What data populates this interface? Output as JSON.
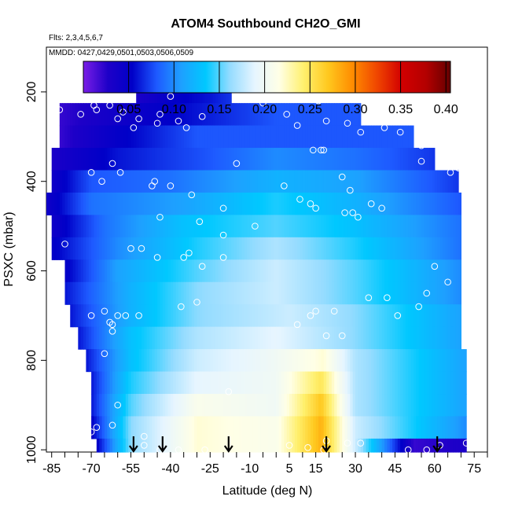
{
  "chart_data": {
    "type": "heatmap",
    "title": "ATOM4 Southbound CH2O_GMI",
    "flights_note": "Flts: 2,3,4,5,6,7",
    "dates_note": "MMDD: 0427,0429,0501,0503,0506,0509",
    "xlabel": "Latitude (deg N)",
    "ylabel": "PSXC (mbar)",
    "xlim": [
      -87,
      80
    ],
    "ylim": [
      1005,
      100
    ],
    "y_reversed": true,
    "x_tick_labels": [
      "-85",
      "-70",
      "-55",
      "-40",
      "-25",
      "-10",
      "5",
      "15",
      "30",
      "45",
      "60",
      "75"
    ],
    "x_tick_values": [
      -85,
      -70,
      -55,
      -40,
      -25,
      -10,
      5,
      15,
      30,
      45,
      60,
      75
    ],
    "x_minor_step": 5,
    "y_tick_labels": [
      "200",
      "400",
      "600",
      "800",
      "1000"
    ],
    "y_tick_values": [
      200,
      400,
      600,
      800,
      1000
    ],
    "colorbar": {
      "range": [
        0.0,
        0.405
      ],
      "tick_labels": [
        "0.05",
        "0.10",
        "0.15",
        "0.20",
        "0.25",
        "0.30",
        "0.35",
        "0.40"
      ],
      "tick_values": [
        0.05,
        0.1,
        0.15,
        0.2,
        0.25,
        0.3,
        0.35,
        0.4
      ],
      "colors": [
        "#7a1ee6",
        "#1e00c8",
        "#0000c8",
        "#1e5aff",
        "#1ea0ff",
        "#00c8ff",
        "#96dcff",
        "#e6f5ff",
        "#ffffe6",
        "#fff06e",
        "#ffc81e",
        "#ff8c00",
        "#f04600",
        "#d20000",
        "#b40000",
        "#640000"
      ]
    },
    "arrow_latitudes": [
      -54,
      -43,
      -18,
      19,
      61
    ],
    "levels": [
      {
        "p": 200,
        "xmin": -53,
        "xmax": -17,
        "anchors": [
          [
            -53,
            0.03
          ],
          [
            -40,
            0.05
          ],
          [
            -25,
            0.06
          ],
          [
            -17,
            0.07
          ]
        ]
      },
      {
        "p": 250,
        "xmin": -82,
        "xmax": 32,
        "anchors": [
          [
            -82,
            0.02
          ],
          [
            -60,
            0.04
          ],
          [
            -30,
            0.06
          ],
          [
            0,
            0.08
          ],
          [
            32,
            0.08
          ]
        ]
      },
      {
        "p": 300,
        "xmin": -82,
        "xmax": 52,
        "anchors": [
          [
            -82,
            0.02
          ],
          [
            -60,
            0.05
          ],
          [
            -30,
            0.08
          ],
          [
            0,
            0.08
          ],
          [
            30,
            0.08
          ],
          [
            52,
            0.08
          ]
        ]
      },
      {
        "p": 350,
        "xmin": -85,
        "xmax": 60,
        "anchors": [
          [
            -85,
            0.03
          ],
          [
            -60,
            0.06
          ],
          [
            -25,
            0.08
          ],
          [
            0,
            0.1
          ],
          [
            30,
            0.09
          ],
          [
            60,
            0.07
          ]
        ]
      },
      {
        "p": 400,
        "xmin": -85,
        "xmax": 69,
        "anchors": [
          [
            -85,
            0.04
          ],
          [
            -70,
            0.08
          ],
          [
            -40,
            0.09
          ],
          [
            0,
            0.12
          ],
          [
            30,
            0.11
          ],
          [
            69,
            0.07
          ]
        ]
      },
      {
        "p": 450,
        "xmin": -87,
        "xmax": 70,
        "anchors": [
          [
            -87,
            0.04
          ],
          [
            -70,
            0.09
          ],
          [
            -35,
            0.11
          ],
          [
            0,
            0.14
          ],
          [
            30,
            0.12
          ],
          [
            70,
            0.08
          ]
        ]
      },
      {
        "p": 500,
        "xmin": -85,
        "xmax": 70,
        "anchors": [
          [
            -85,
            0.04
          ],
          [
            -65,
            0.09
          ],
          [
            -35,
            0.13
          ],
          [
            0,
            0.15
          ],
          [
            30,
            0.13
          ],
          [
            70,
            0.09
          ]
        ]
      },
      {
        "p": 550,
        "xmin": -85,
        "xmax": 70,
        "anchors": [
          [
            -85,
            0.05
          ],
          [
            -60,
            0.1
          ],
          [
            -30,
            0.14
          ],
          [
            0,
            0.17
          ],
          [
            30,
            0.14
          ],
          [
            70,
            0.09
          ]
        ]
      },
      {
        "p": 600,
        "xmin": -80,
        "xmax": 70,
        "anchors": [
          [
            -80,
            0.05
          ],
          [
            -60,
            0.11
          ],
          [
            -30,
            0.15
          ],
          [
            0,
            0.18
          ],
          [
            30,
            0.15
          ],
          [
            70,
            0.1
          ]
        ]
      },
      {
        "p": 650,
        "xmin": -80,
        "xmax": 70,
        "anchors": [
          [
            -80,
            0.06
          ],
          [
            -55,
            0.12
          ],
          [
            -30,
            0.16
          ],
          [
            0,
            0.18
          ],
          [
            30,
            0.15
          ],
          [
            70,
            0.1
          ]
        ]
      },
      {
        "p": 700,
        "xmin": -78,
        "xmax": 70,
        "anchors": [
          [
            -78,
            0.06
          ],
          [
            -55,
            0.12
          ],
          [
            -30,
            0.16
          ],
          [
            5,
            0.18
          ],
          [
            30,
            0.16
          ],
          [
            70,
            0.11
          ]
        ]
      },
      {
        "p": 750,
        "xmin": -75,
        "xmax": 70,
        "anchors": [
          [
            -75,
            0.06
          ],
          [
            -55,
            0.13
          ],
          [
            -30,
            0.17
          ],
          [
            0,
            0.19
          ],
          [
            30,
            0.16
          ],
          [
            70,
            0.11
          ]
        ]
      },
      {
        "p": 800,
        "xmin": -72,
        "xmax": 72,
        "anchors": [
          [
            -72,
            0.06
          ],
          [
            -55,
            0.13
          ],
          [
            -30,
            0.18
          ],
          [
            0,
            0.2
          ],
          [
            18,
            0.22
          ],
          [
            30,
            0.17
          ],
          [
            72,
            0.11
          ]
        ]
      },
      {
        "p": 850,
        "xmin": -70,
        "xmax": 72,
        "anchors": [
          [
            -70,
            0.06
          ],
          [
            -55,
            0.14
          ],
          [
            -30,
            0.19
          ],
          [
            0,
            0.2
          ],
          [
            17,
            0.25
          ],
          [
            30,
            0.17
          ],
          [
            72,
            0.11
          ]
        ]
      },
      {
        "p": 900,
        "xmin": -70,
        "xmax": 72,
        "anchors": [
          [
            -70,
            0.06
          ],
          [
            -55,
            0.15
          ],
          [
            -30,
            0.21
          ],
          [
            0,
            0.2
          ],
          [
            17,
            0.27
          ],
          [
            30,
            0.17
          ],
          [
            72,
            0.11
          ]
        ]
      },
      {
        "p": 950,
        "xmin": -70,
        "xmax": 72,
        "anchors": [
          [
            -70,
            0.05
          ],
          [
            -55,
            0.16
          ],
          [
            -30,
            0.22
          ],
          [
            0,
            0.21
          ],
          [
            17,
            0.28
          ],
          [
            30,
            0.18
          ],
          [
            72,
            0.1
          ]
        ]
      },
      {
        "p": 1000,
        "xmin": -68,
        "xmax": 72,
        "anchors": [
          [
            -68,
            0.05
          ],
          [
            -55,
            0.16
          ],
          [
            -30,
            0.22
          ],
          [
            0,
            0.21
          ],
          [
            17,
            0.28
          ],
          [
            30,
            0.18
          ],
          [
            52,
            0.02
          ],
          [
            72,
            0.03
          ]
        ]
      }
    ],
    "observations": [
      [
        -82,
        240
      ],
      [
        -74,
        250
      ],
      [
        -69,
        230
      ],
      [
        -68,
        240
      ],
      [
        -63,
        230
      ],
      [
        -58,
        245
      ],
      [
        -60,
        260
      ],
      [
        -52,
        260
      ],
      [
        -54,
        280
      ],
      [
        -40,
        210
      ],
      [
        -45,
        270
      ],
      [
        -44,
        250
      ],
      [
        -37,
        265
      ],
      [
        -34,
        280
      ],
      [
        -28,
        255
      ],
      [
        -12,
        210
      ],
      [
        -5,
        225
      ],
      [
        4,
        250
      ],
      [
        8,
        275
      ],
      [
        16,
        220
      ],
      [
        19,
        265
      ],
      [
        14,
        330
      ],
      [
        17,
        330
      ],
      [
        18,
        330
      ],
      [
        27,
        270
      ],
      [
        32,
        290
      ],
      [
        41,
        280
      ],
      [
        47,
        290
      ],
      [
        55,
        320
      ],
      [
        55,
        355
      ],
      [
        -70,
        380
      ],
      [
        -66,
        400
      ],
      [
        -62,
        360
      ],
      [
        -59,
        380
      ],
      [
        -47,
        410
      ],
      [
        -46,
        400
      ],
      [
        -40,
        410
      ],
      [
        -32,
        430
      ],
      [
        -20,
        460
      ],
      [
        -15,
        360
      ],
      [
        3,
        410
      ],
      [
        9,
        440
      ],
      [
        13,
        450
      ],
      [
        25,
        390
      ],
      [
        28,
        420
      ],
      [
        31,
        480
      ],
      [
        36,
        450
      ],
      [
        40,
        460
      ],
      [
        66,
        380
      ],
      [
        69,
        370
      ],
      [
        -44,
        480
      ],
      [
        -29,
        490
      ],
      [
        -20,
        520
      ],
      [
        -8,
        500
      ],
      [
        15,
        460
      ],
      [
        26,
        470
      ],
      [
        29,
        470
      ],
      [
        -80,
        540
      ],
      [
        -55,
        550
      ],
      [
        -51,
        550
      ],
      [
        -45,
        570
      ],
      [
        -35,
        570
      ],
      [
        -33,
        560
      ],
      [
        -28,
        590
      ],
      [
        -20,
        570
      ],
      [
        -57,
        700
      ],
      [
        -60,
        700
      ],
      [
        -62,
        720
      ],
      [
        -62,
        735
      ],
      [
        -63,
        715
      ],
      [
        -65,
        690
      ],
      [
        -70,
        700
      ],
      [
        -65,
        785
      ],
      [
        -52,
        700
      ],
      [
        -36,
        680
      ],
      [
        -30,
        670
      ],
      [
        15,
        690
      ],
      [
        22,
        690
      ],
      [
        35,
        660
      ],
      [
        42,
        660
      ],
      [
        54,
        680
      ],
      [
        60,
        590
      ],
      [
        65,
        625
      ],
      [
        8,
        720
      ],
      [
        13,
        700
      ],
      [
        19,
        745
      ],
      [
        25,
        745
      ],
      [
        46,
        700
      ],
      [
        57,
        650
      ],
      [
        -60,
        900
      ],
      [
        -70,
        960
      ],
      [
        -68,
        950
      ],
      [
        -62,
        945
      ],
      [
        -50,
        970
      ],
      [
        -50,
        990
      ],
      [
        -44,
        1000
      ],
      [
        -37,
        1000
      ],
      [
        -27,
        1000
      ],
      [
        5,
        990
      ],
      [
        12,
        995
      ],
      [
        18,
        1000
      ],
      [
        19,
        980
      ],
      [
        27,
        985
      ],
      [
        32,
        985
      ],
      [
        50,
        1000
      ],
      [
        57,
        1000
      ],
      [
        62,
        990
      ],
      [
        72,
        985
      ],
      [
        -18,
        870
      ]
    ]
  }
}
